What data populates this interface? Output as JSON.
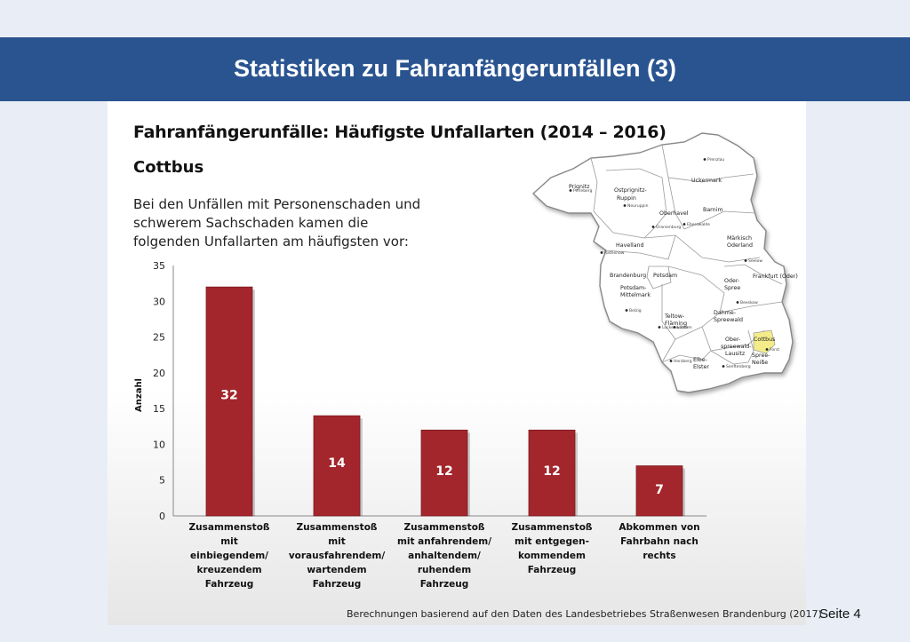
{
  "slide": {
    "title": "Statistiken zu Fahranfängerunfällen (3)",
    "heading": "Fahranfängerunfälle: Häufigste Unfallarten (2014 – 2016)",
    "region": "Cottbus",
    "description": "Bei den Unfällen mit Personenschaden und schwerem Sachschaden kamen die folgenden Unfallarten am häufigsten vor:",
    "source": "Berechnungen basierend auf den Daten des Landesbetriebes Straßenwesen Brandenburg (2017)",
    "page": "Seite 4"
  },
  "colors": {
    "header": "#2a5490",
    "bar": "#a3262c",
    "highlight": "#f4ec8a"
  },
  "chart_data": {
    "type": "bar",
    "ylabel": "Anzahl",
    "ylim": [
      0,
      35
    ],
    "yticks": [
      0,
      5,
      10,
      15,
      20,
      25,
      30,
      35
    ],
    "categories": [
      [
        "Zusammenstoß",
        "mit",
        "einbiegendem/",
        "kreuzendem",
        "Fahrzeug"
      ],
      [
        "Zusammenstoß",
        "mit",
        "vorausfahrendem/",
        "wartendem",
        "Fahrzeug"
      ],
      [
        "Zusammenstoß",
        "mit anfahrendem/",
        "anhaltendem/",
        "ruhendem",
        "Fahrzeug"
      ],
      [
        "Zusammenstoß",
        "mit entgegen-",
        "kommendem",
        "Fahrzeug"
      ],
      [
        "Abkommen von",
        "Fahrbahn nach",
        "rechts"
      ]
    ],
    "values": [
      32,
      14,
      12,
      12,
      7
    ],
    "grid": false,
    "legend": "none"
  },
  "map": {
    "labels": [
      "Prignitz",
      "Ostprignitz-",
      "Ruppin",
      "Uckermark",
      "Oberhavel",
      "Barnim",
      "Havelland",
      "Märkisch",
      "Oderland",
      "Brandenburg",
      "Potsdam",
      "Potsdam-",
      "Mittelmark",
      "Oder-",
      "Spree",
      "Frankfurt (Oder)",
      "Teltow-",
      "Fläming",
      "Dahme-",
      "Spreewald",
      "Ober-",
      "spreewald-",
      "Lausitz",
      "Cottbus",
      "Spree-",
      "Neiße",
      "Elbe-",
      "Elster"
    ],
    "towns": [
      "Prenzlau",
      "Perleberg",
      "Neuruppin",
      "Oranienburg",
      "Eberswalde",
      "Rathenow",
      "Seelow",
      "Belzig",
      "Luckenwalde",
      "Beeskow",
      "Lübben",
      "Senftenberg",
      "Herzberg",
      "Forst"
    ]
  }
}
